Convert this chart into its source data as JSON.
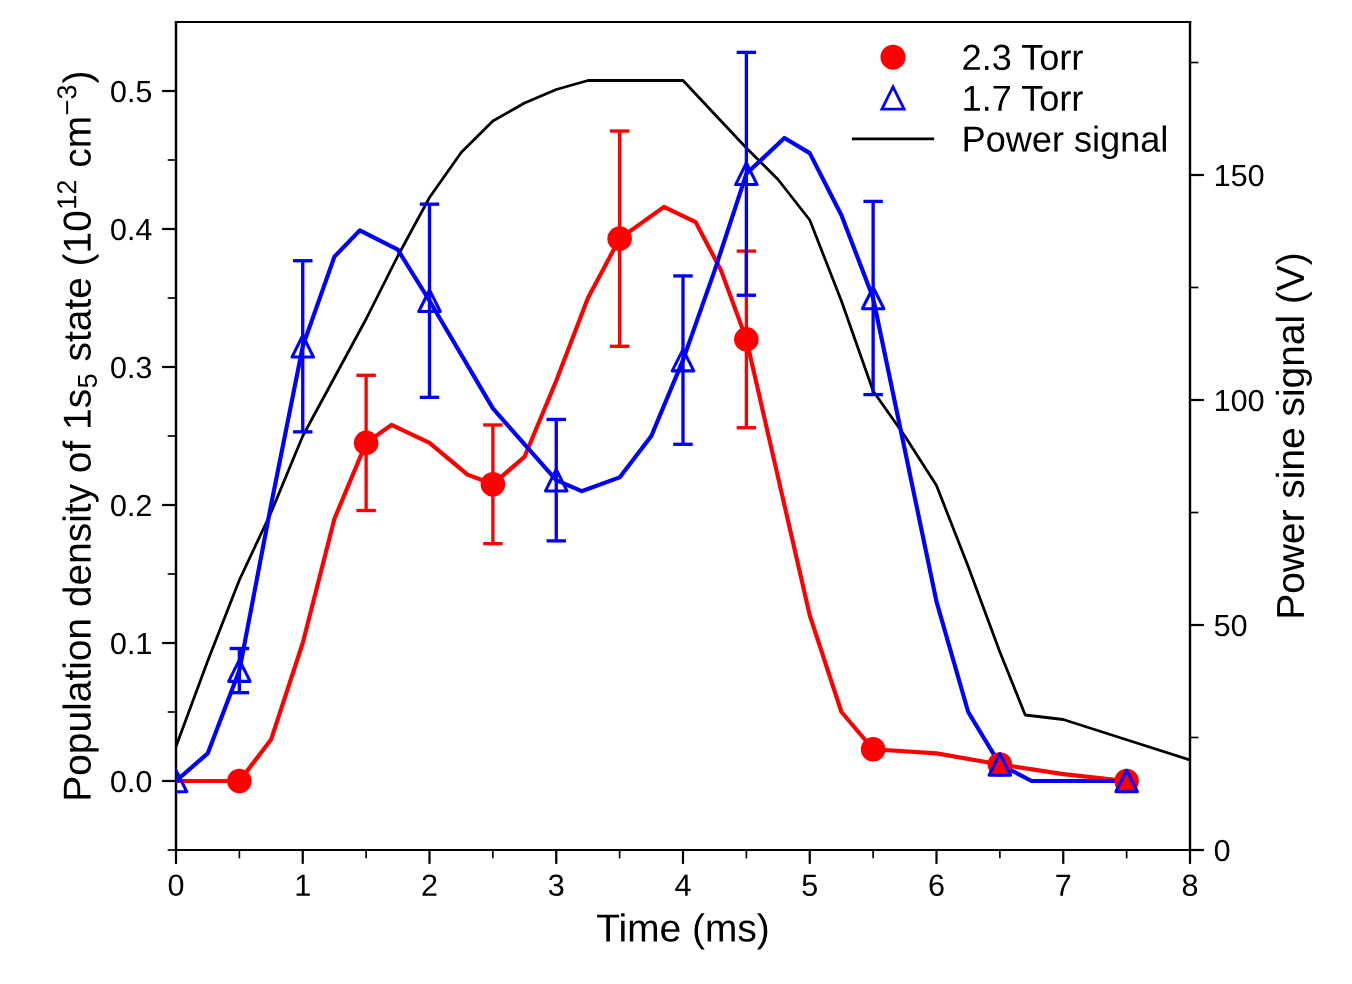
{
  "chart_data": {
    "type": "scatter",
    "xlabel": "Time (ms)",
    "ylabel": "Population density of 1s$_{5}$ state (10$^{12}$ cm$^{−3}$)",
    "y2label": "Power sine signal (V)",
    "xlim": [
      0,
      8
    ],
    "xticks": [
      0,
      {
        "value": 0.5,
        "label": null
      },
      1,
      {
        "value": 1.5,
        "label": null
      },
      2,
      {
        "value": 2.5,
        "label": null
      },
      3,
      {
        "value": 3.5,
        "label": null
      },
      4,
      {
        "value": 4.5,
        "label": null
      },
      5,
      {
        "value": 5.5,
        "label": null
      },
      6,
      {
        "value": 6.5,
        "label": null
      },
      7,
      {
        "value": 7.5,
        "label": null
      },
      8
    ],
    "ylim": [
      -0.05,
      0.55
    ],
    "yticks": [
      {
        "value": -0.05,
        "label": null
      },
      {
        "value": 0,
        "label": "0.0"
      },
      {
        "value": 0.05,
        "label": null
      },
      {
        "value": 0.1,
        "label": "0.1"
      },
      {
        "value": 0.15,
        "label": null
      },
      {
        "value": 0.2,
        "label": "0.2"
      },
      {
        "value": 0.25,
        "label": null
      },
      {
        "value": 0.3,
        "label": "0.3"
      },
      {
        "value": 0.35,
        "label": null
      },
      {
        "value": 0.4,
        "label": "0.4"
      },
      {
        "value": 0.45,
        "label": null
      },
      {
        "value": 0.5,
        "label": "0.5"
      }
    ],
    "y2lim": [
      0,
      184
    ],
    "y2ticks": [
      0,
      {
        "value": 25,
        "label": null
      },
      50,
      {
        "value": 75,
        "label": null
      },
      100,
      {
        "value": 125,
        "label": null
      },
      150,
      {
        "value": 175,
        "label": null
      }
    ],
    "grid": false,
    "legend": "top right",
    "series": [
      {
        "name": "2.3 Torr",
        "marker": "circle",
        "color": "#ff0000",
        "x": [
          0.5,
          1.5,
          2.5,
          3.5,
          4.5,
          5.5,
          6.5,
          7.5
        ],
        "values": [
          0.0,
          0.245,
          0.215,
          0.393,
          0.32,
          0.023,
          0.012,
          0.0
        ],
        "errors": [
          null,
          0.049,
          0.043,
          0.078,
          0.064,
          null,
          null,
          null
        ]
      },
      {
        "name": "1.7 Torr",
        "marker": "triangle",
        "color": "#0000ff",
        "x": [
          0,
          0.5,
          1,
          2,
          3,
          4,
          4.5,
          5.5,
          6.5,
          7.5
        ],
        "values": [
          0.0,
          0.08,
          0.315,
          0.348,
          0.218,
          0.305,
          0.44,
          0.35,
          0.012,
          0.0
        ],
        "errors": [
          null,
          0.016,
          0.062,
          0.07,
          0.044,
          0.061,
          0.088,
          0.07,
          null,
          null
        ]
      },
      {
        "name": "Power signal",
        "type": "line",
        "axis": "y2",
        "color": "#000000",
        "x": [
          0,
          0.25,
          0.5,
          0.75,
          1.0,
          1.25,
          1.5,
          1.75,
          2.0,
          2.25,
          2.5,
          2.75,
          3.0,
          3.25,
          3.5,
          3.75,
          4.0,
          4.2,
          4.5,
          4.75,
          5.0,
          5.25,
          5.5,
          5.75,
          6.0,
          6.25,
          6.5,
          6.7,
          7.0,
          7.5,
          8.0
        ],
        "values": [
          23,
          42,
          60,
          75,
          92,
          105,
          118,
          132,
          145,
          155,
          162,
          166,
          169,
          171,
          171,
          171,
          171,
          165,
          156,
          149,
          140,
          122,
          102,
          92,
          81,
          63,
          44,
          30,
          29,
          24.5,
          20
        ]
      },
      {
        "type": "line",
        "color": "#ff0000",
        "x": [
          0,
          0.5,
          0.75,
          1.0,
          1.25,
          1.5,
          1.7,
          2.0,
          2.3,
          2.5,
          2.75,
          3.0,
          3.25,
          3.5,
          3.85,
          4.1,
          4.3,
          4.5,
          4.75,
          5.0,
          5.25,
          5.5,
          6.0,
          6.5,
          7.0,
          7.5
        ],
        "values": [
          0,
          0.0,
          0.03,
          0.1,
          0.19,
          0.245,
          0.258,
          0.245,
          0.222,
          0.215,
          0.235,
          0.29,
          0.35,
          0.393,
          0.416,
          0.405,
          0.37,
          0.32,
          0.22,
          0.12,
          0.05,
          0.023,
          0.02,
          0.012,
          0.005,
          0.0
        ]
      },
      {
        "type": "line",
        "color": "#0000ff",
        "x": [
          0,
          0.25,
          0.5,
          0.75,
          1.0,
          1.25,
          1.45,
          1.75,
          2.0,
          2.5,
          3.0,
          3.2,
          3.5,
          3.75,
          4.0,
          4.25,
          4.5,
          4.8,
          5.0,
          5.25,
          5.5,
          5.75,
          6.0,
          6.25,
          6.5,
          6.75,
          7.5
        ],
        "values": [
          0,
          0.02,
          0.08,
          0.2,
          0.315,
          0.38,
          0.399,
          0.385,
          0.348,
          0.27,
          0.218,
          0.21,
          0.22,
          0.25,
          0.305,
          0.37,
          0.44,
          0.466,
          0.455,
          0.41,
          0.35,
          0.24,
          0.13,
          0.05,
          0.012,
          0.0,
          0.0
        ]
      }
    ]
  }
}
